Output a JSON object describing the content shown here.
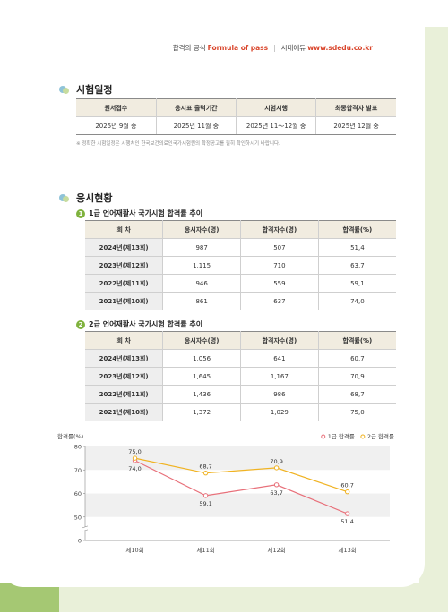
{
  "header": {
    "tagline": "합격의 공식",
    "slogan": "Formula of pass",
    "publisher": "시대에듀",
    "url": "www.sdedu.co.kr"
  },
  "schedule": {
    "title": "시험일정",
    "columns": [
      "원서접수",
      "응시표 출력기간",
      "시험시행",
      "최종합격자 발표"
    ],
    "rows": [
      [
        "2025년 9월 중",
        "2025년 11월 중",
        "2025년 11～12월 중",
        "2025년 12월 중"
      ]
    ],
    "note": "※ 정확한 시험일정은 시행처인 한국보건의료인국가시험원의 확정공고를 필히 확인하시기 바랍니다."
  },
  "status": {
    "title": "응시현황",
    "tables": [
      {
        "number": "1",
        "title": "1급 언어재활사 국가시험 합격률 추이",
        "columns": [
          "회 차",
          "응시자수(명)",
          "합격자수(명)",
          "합격률(%)"
        ],
        "rows": [
          [
            "2024년(제13회)",
            "987",
            "507",
            "51,4"
          ],
          [
            "2023년(제12회)",
            "1,115",
            "710",
            "63,7"
          ],
          [
            "2022년(제11회)",
            "946",
            "559",
            "59,1"
          ],
          [
            "2021년(제10회)",
            "861",
            "637",
            "74,0"
          ]
        ]
      },
      {
        "number": "2",
        "title": "2급 언어재활사 국가시험 합격률 추이",
        "columns": [
          "회 차",
          "응시자수(명)",
          "합격자수(명)",
          "합격률(%)"
        ],
        "rows": [
          [
            "2024년(제13회)",
            "1,056",
            "641",
            "60,7"
          ],
          [
            "2023년(제12회)",
            "1,645",
            "1,167",
            "70,9"
          ],
          [
            "2022년(제11회)",
            "1,436",
            "986",
            "68,7"
          ],
          [
            "2021년(제10회)",
            "1,372",
            "1,029",
            "75,0"
          ]
        ]
      }
    ]
  },
  "chart_data": {
    "type": "line",
    "y_label": "합격률(%)",
    "categories": [
      "제10회",
      "제11회",
      "제12회",
      "제13회"
    ],
    "series": [
      {
        "name": "1급 합격률",
        "color": "#e8707a",
        "values": [
          74.0,
          59.1,
          63.7,
          51.4
        ],
        "value_labels": [
          "74,0",
          "59,1",
          "63,7",
          "51,4"
        ]
      },
      {
        "name": "2급 합격률",
        "color": "#f0b323",
        "values": [
          75.0,
          68.7,
          70.9,
          60.7
        ],
        "value_labels": [
          "75,0",
          "68,7",
          "70,9",
          "60,7"
        ]
      }
    ],
    "ylim": [
      0,
      80
    ],
    "yticks": [
      0,
      50,
      60,
      70,
      80
    ],
    "axis_break": [
      0,
      50
    ],
    "legend": "top-right",
    "band_color": "#f0f0f0"
  }
}
